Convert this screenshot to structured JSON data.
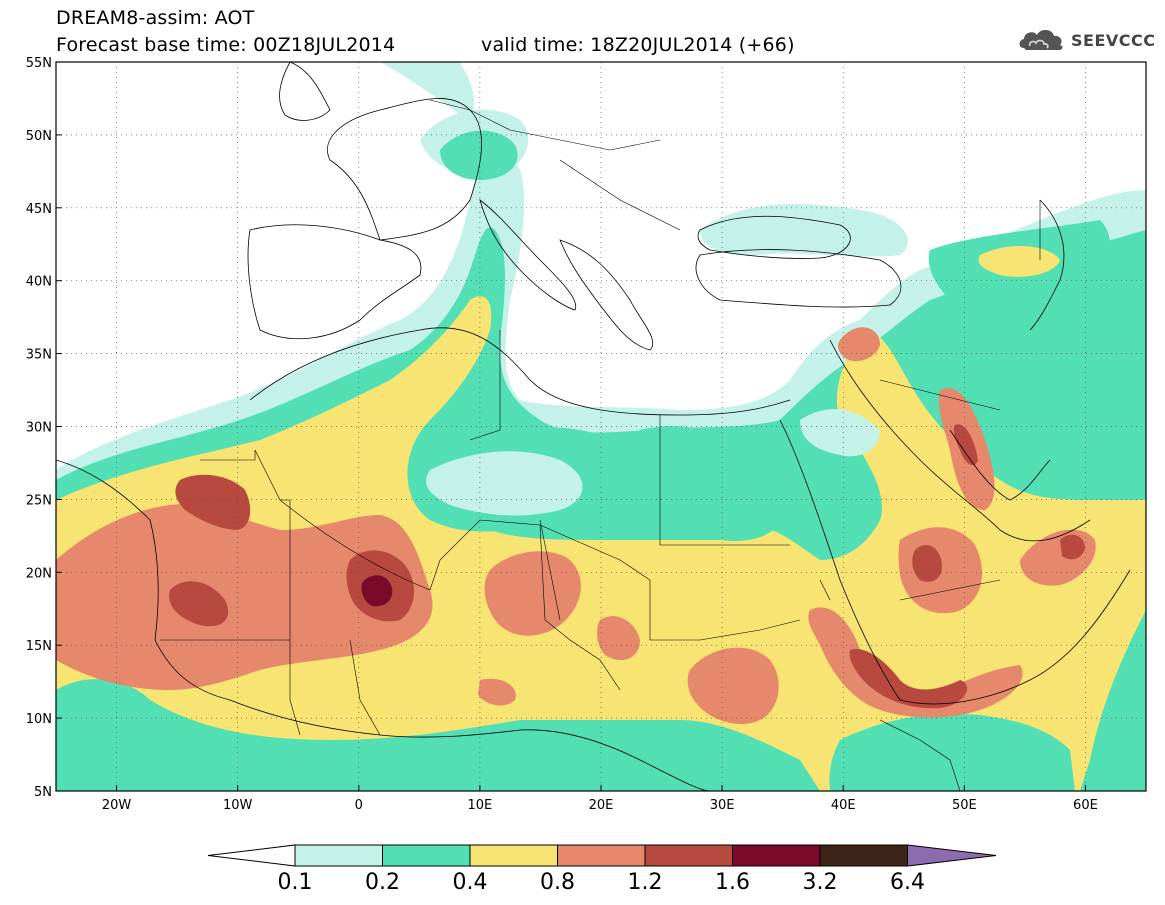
{
  "header": {
    "title_line1": "DREAM8-assim: AOT",
    "title_line2": "Forecast base time: 00Z18JUL2014",
    "valid_time": "valid time: 18Z20JUL2014 (+66)",
    "logo_text": "SEEVCCC"
  },
  "map": {
    "lon_range": [
      -25,
      65
    ],
    "lat_range": [
      5,
      55
    ],
    "lon_ticks": [
      {
        "value": -20,
        "label": "20W"
      },
      {
        "value": -10,
        "label": "10W"
      },
      {
        "value": 0,
        "label": "0"
      },
      {
        "value": 10,
        "label": "10E"
      },
      {
        "value": 20,
        "label": "20E"
      },
      {
        "value": 30,
        "label": "30E"
      },
      {
        "value": 40,
        "label": "40E"
      },
      {
        "value": 50,
        "label": "50E"
      },
      {
        "value": 60,
        "label": "60E"
      }
    ],
    "lat_ticks": [
      {
        "value": 55,
        "label": "55N"
      },
      {
        "value": 50,
        "label": "50N"
      },
      {
        "value": 45,
        "label": "45N"
      },
      {
        "value": 40,
        "label": "40N"
      },
      {
        "value": 35,
        "label": "35N"
      },
      {
        "value": 30,
        "label": "30N"
      },
      {
        "value": 25,
        "label": "25N"
      },
      {
        "value": 20,
        "label": "20N"
      },
      {
        "value": 15,
        "label": "15N"
      },
      {
        "value": 10,
        "label": "10N"
      },
      {
        "value": 5,
        "label": "5N"
      }
    ],
    "grid": true,
    "grid_style": "dotted"
  },
  "colorbar": {
    "levels": [
      "0.1",
      "0.2",
      "0.4",
      "0.8",
      "1.2",
      "1.6",
      "3.2",
      "6.4"
    ],
    "colors": [
      "#ffffff",
      "#c4f1e8",
      "#52dfb3",
      "#f7e472",
      "#e6886b",
      "#b8493e",
      "#7a0a2a",
      "#3d2416",
      "#8c6bb0"
    ]
  },
  "colors": {
    "level_0_1": "#c4f1e8",
    "level_0_2": "#52dfb3",
    "level_0_4": "#f7e472",
    "level_0_8": "#e6886b",
    "level_1_2": "#b8493e",
    "level_1_6": "#7a0a2a",
    "level_3_2": "#3d2416",
    "level_6_4": "#8c6bb0"
  }
}
